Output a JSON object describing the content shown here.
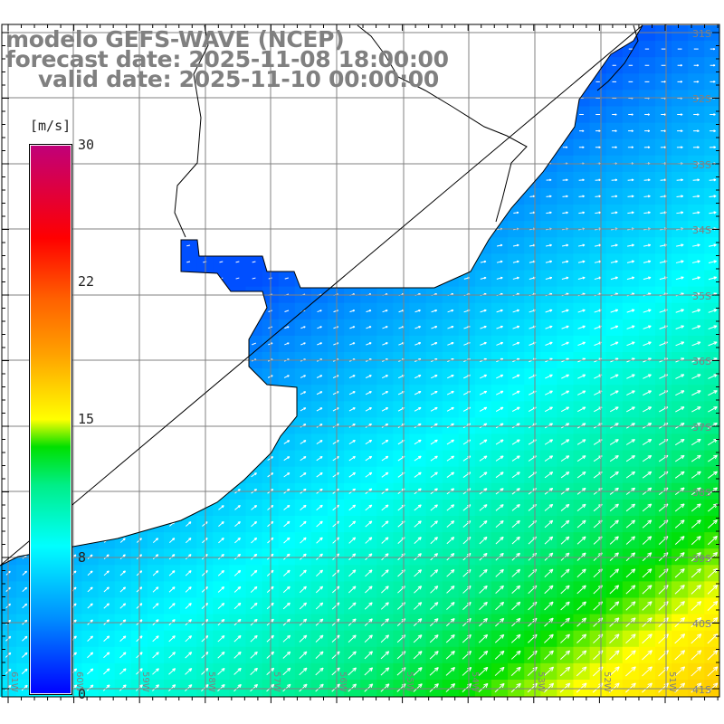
{
  "header": {
    "line1": "modelo GEFS-WAVE (NCEP)",
    "line2": "forecast date: 2025-11-08 18:00:00",
    "line3": "valid date: 2025-11-10 00:00:00"
  },
  "colorbar": {
    "unit": "[m/s]",
    "ticks": [
      "30",
      "22",
      "15",
      "8",
      "0"
    ],
    "min": 0,
    "max": 30
  },
  "axes": {
    "lat_labels": [
      "31S",
      "32S",
      "33S",
      "34S",
      "35S",
      "36S",
      "37S",
      "38S",
      "39S",
      "40S",
      "41S"
    ],
    "lon_labels": [
      "61W",
      "60W",
      "59W",
      "58W",
      "57W",
      "56W",
      "55W",
      "54W",
      "53W",
      "52W",
      "51W"
    ]
  },
  "colors": {
    "label_gray": "#808080",
    "land": "#ffffff",
    "coast": "#000000"
  }
}
